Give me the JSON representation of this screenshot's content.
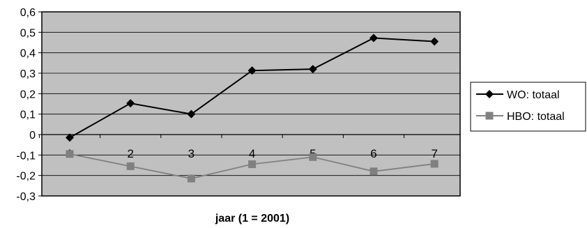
{
  "chart_data": {
    "type": "line",
    "x": [
      1,
      2,
      3,
      4,
      5,
      6,
      7
    ],
    "categories": [
      "1",
      "2",
      "3",
      "4",
      "5",
      "6",
      "7"
    ],
    "series": [
      {
        "name": "WO: totaal",
        "values": [
          -0.015,
          0.153,
          0.1,
          0.313,
          0.32,
          0.472,
          0.455
        ],
        "color": "#000000",
        "marker": "diamond"
      },
      {
        "name": "HBO: totaal",
        "values": [
          -0.095,
          -0.155,
          -0.215,
          -0.145,
          -0.11,
          -0.18,
          -0.143
        ],
        "color": "#808080",
        "marker": "square"
      }
    ],
    "ylim": [
      -0.3,
      0.6
    ],
    "yticks": [
      "0,6",
      "0,5",
      "0,4",
      "0,3",
      "0,2",
      "0,1",
      "0",
      "-0,1",
      "-0,2",
      "-0,3"
    ],
    "ytick_values": [
      0.6,
      0.5,
      0.4,
      0.3,
      0.2,
      0.1,
      0,
      -0.1,
      -0.2,
      -0.3
    ],
    "title": "",
    "xlabel": "jaar (1 = 2001)",
    "ylabel": "",
    "grid": true,
    "legend": "right",
    "plot_background": "#c0c0c0"
  }
}
